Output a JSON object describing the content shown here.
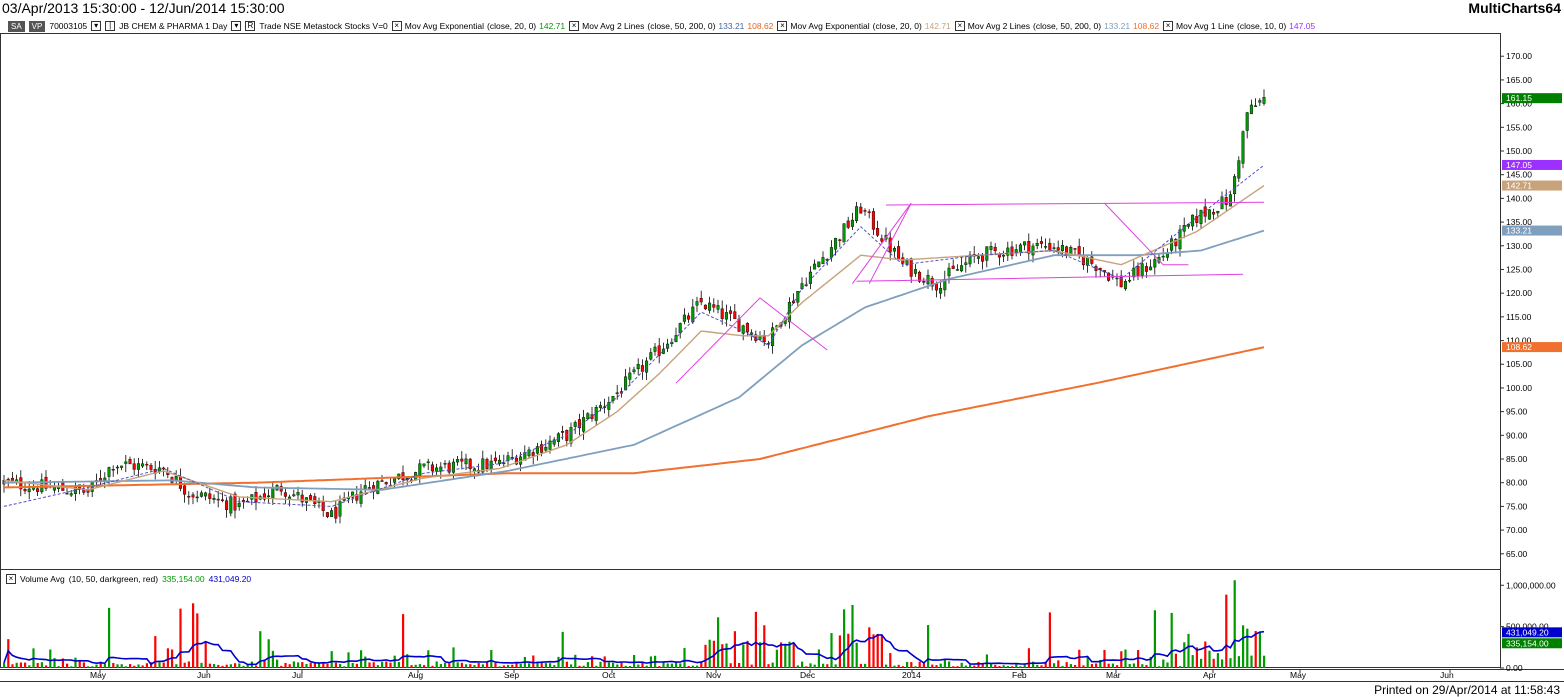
{
  "window": {
    "date_range": "03/Apr/2013 15:30:00 - 12/Jun/2014 15:30:00",
    "app_name": "MultiCharts64",
    "printed": "Printed on 29/Apr/2014 at 11:58:43"
  },
  "info": {
    "tag1": "SA",
    "tag2": "VP",
    "code": "70003105",
    "symbol": "JB CHEM & PHARMA  1 Day",
    "trade": "Trade  NSE  Metastock  Stocks  V=0",
    "ind1_name": "Mov Avg Exponential",
    "ind1_params": "(close,  20,  0)",
    "ind1_val": "142.71",
    "ind2_name": "Mov Avg 2 Lines",
    "ind2_params": "(close,  50,  200,  0)",
    "ind2_val1": "133.21",
    "ind2_val2": "108.62",
    "ind3_name": "Mov Avg Exponential",
    "ind3_params": "(close,  20,  0)",
    "ind3_val": "142.71",
    "ind4_name": "Mov Avg 2 Lines",
    "ind4_params": "(close,  50,  200,  0)",
    "ind4_val1": "133.21",
    "ind4_val2": "108.62",
    "ind5_name": "Mov Avg 1 Line",
    "ind5_params": "(close,  10,  0)",
    "ind5_val": "147.05"
  },
  "volume_info": {
    "name": "Volume Avg",
    "params": "(10,  50,  darkgreen,  red)",
    "val1": "335,154.00",
    "val2": "431,049.20"
  },
  "colors": {
    "green": "#009900",
    "red": "#ff0000",
    "ema20": "#c8a27a",
    "ma50": "#7f9fbf",
    "ma200": "#f07030",
    "ma10": "#5050cc",
    "magenta": "#e040e0",
    "vol_avg": "#0000cc"
  },
  "price_markers": [
    {
      "text": "161.15",
      "value": 161.15,
      "color": "#008000"
    },
    {
      "text": "147.05",
      "value": 147.05,
      "color": "#9b30ff"
    },
    {
      "text": "142.71",
      "value": 142.71,
      "color": "#c8a27a"
    },
    {
      "text": "133.21",
      "value": 133.21,
      "color": "#7f9fbf"
    },
    {
      "text": "108.62",
      "value": 108.62,
      "color": "#f07030"
    }
  ],
  "volume_markers": [
    {
      "text": "431,049.20",
      "value": 431049.2,
      "color": "#0000cc"
    },
    {
      "text": "335,154.00",
      "value": 335154.0,
      "color": "#008000"
    }
  ],
  "chart_data": {
    "type": "candlestick",
    "price_axis": {
      "ticks": [
        65,
        70,
        75,
        80,
        85,
        90,
        95,
        100,
        105,
        110,
        115,
        120,
        125,
        130,
        135,
        140,
        145,
        150,
        155,
        160,
        165,
        170
      ],
      "range": [
        62,
        173
      ]
    },
    "volume_axis": {
      "ticks": [
        {
          "v": 0,
          "t": "0.00"
        },
        {
          "v": 500000,
          "t": "500,000.00"
        },
        {
          "v": 1000000,
          "t": "1,000,000.00"
        }
      ],
      "range": [
        0,
        1100000
      ]
    },
    "months": [
      "May",
      "Jun",
      "Jul",
      "Aug",
      "Sep",
      "Oct",
      "Nov",
      "Dec",
      "2014",
      "Feb",
      "Mar",
      "Apr",
      "May",
      "Jun"
    ],
    "anchors": [
      [
        0,
        80
      ],
      [
        20,
        78
      ],
      [
        26,
        84
      ],
      [
        38,
        83
      ],
      [
        44,
        78
      ],
      [
        56,
        75
      ],
      [
        66,
        79
      ],
      [
        78,
        73
      ],
      [
        86,
        79
      ],
      [
        100,
        83
      ],
      [
        118,
        84
      ],
      [
        134,
        90
      ],
      [
        146,
        99
      ],
      [
        156,
        108
      ],
      [
        166,
        118
      ],
      [
        176,
        113
      ],
      [
        182,
        110
      ],
      [
        190,
        122
      ],
      [
        198,
        131
      ],
      [
        204,
        138
      ],
      [
        214,
        126
      ],
      [
        222,
        122
      ],
      [
        232,
        128
      ],
      [
        244,
        130
      ],
      [
        250,
        130
      ],
      [
        260,
        126
      ],
      [
        266,
        122
      ],
      [
        276,
        128
      ],
      [
        284,
        136
      ],
      [
        292,
        140
      ],
      [
        296,
        158
      ],
      [
        300,
        161
      ]
    ],
    "ema20": [
      [
        0,
        80.5
      ],
      [
        20,
        78.5
      ],
      [
        38,
        82.5
      ],
      [
        56,
        77
      ],
      [
        78,
        76
      ],
      [
        100,
        81
      ],
      [
        118,
        83
      ],
      [
        134,
        88
      ],
      [
        146,
        95
      ],
      [
        156,
        103
      ],
      [
        166,
        112
      ],
      [
        176,
        111
      ],
      [
        182,
        111
      ],
      [
        190,
        118
      ],
      [
        204,
        128
      ],
      [
        214,
        127
      ],
      [
        232,
        128
      ],
      [
        250,
        129
      ],
      [
        266,
        126
      ],
      [
        284,
        133
      ],
      [
        300,
        142.7
      ]
    ],
    "ma50": [
      [
        0,
        80
      ],
      [
        40,
        80.5
      ],
      [
        60,
        79
      ],
      [
        90,
        78.5
      ],
      [
        120,
        82.5
      ],
      [
        150,
        88
      ],
      [
        175,
        98
      ],
      [
        190,
        109
      ],
      [
        205,
        117
      ],
      [
        225,
        123
      ],
      [
        250,
        128
      ],
      [
        270,
        128
      ],
      [
        285,
        129
      ],
      [
        300,
        133.2
      ]
    ],
    "ma200": [
      [
        0,
        79
      ],
      [
        60,
        80
      ],
      [
        120,
        82
      ],
      [
        150,
        82
      ],
      [
        180,
        85
      ],
      [
        220,
        94
      ],
      [
        260,
        101
      ],
      [
        300,
        108.6
      ]
    ],
    "ma10": [
      [
        0,
        75
      ],
      [
        20,
        79
      ],
      [
        38,
        83
      ],
      [
        56,
        76
      ],
      [
        78,
        75
      ],
      [
        100,
        82
      ],
      [
        118,
        84
      ],
      [
        134,
        90
      ],
      [
        146,
        98
      ],
      [
        156,
        107
      ],
      [
        166,
        116
      ],
      [
        176,
        112
      ],
      [
        182,
        109
      ],
      [
        190,
        121
      ],
      [
        204,
        134
      ],
      [
        214,
        126
      ],
      [
        232,
        128
      ],
      [
        250,
        129
      ],
      [
        266,
        123
      ],
      [
        284,
        136
      ],
      [
        300,
        147
      ]
    ],
    "patterns": [
      {
        "name": "upper-resistance",
        "points": [
          [
            210,
            138.6
          ],
          [
            300,
            139.2
          ]
        ]
      },
      {
        "name": "lower-support",
        "points": [
          [
            203,
            122.5
          ],
          [
            295,
            124
          ]
        ]
      },
      {
        "name": "rally-wedge-1",
        "points": [
          [
            160,
            101
          ],
          [
            180,
            119
          ],
          [
            196,
            108
          ]
        ]
      },
      {
        "name": "rally-wedge-2",
        "points": [
          [
            202,
            122
          ],
          [
            216,
            139
          ],
          [
            206,
            122
          ]
        ]
      },
      {
        "name": "march-drop",
        "points": [
          [
            262,
            139
          ],
          [
            276,
            126
          ],
          [
            282,
            126
          ]
        ]
      }
    ]
  }
}
